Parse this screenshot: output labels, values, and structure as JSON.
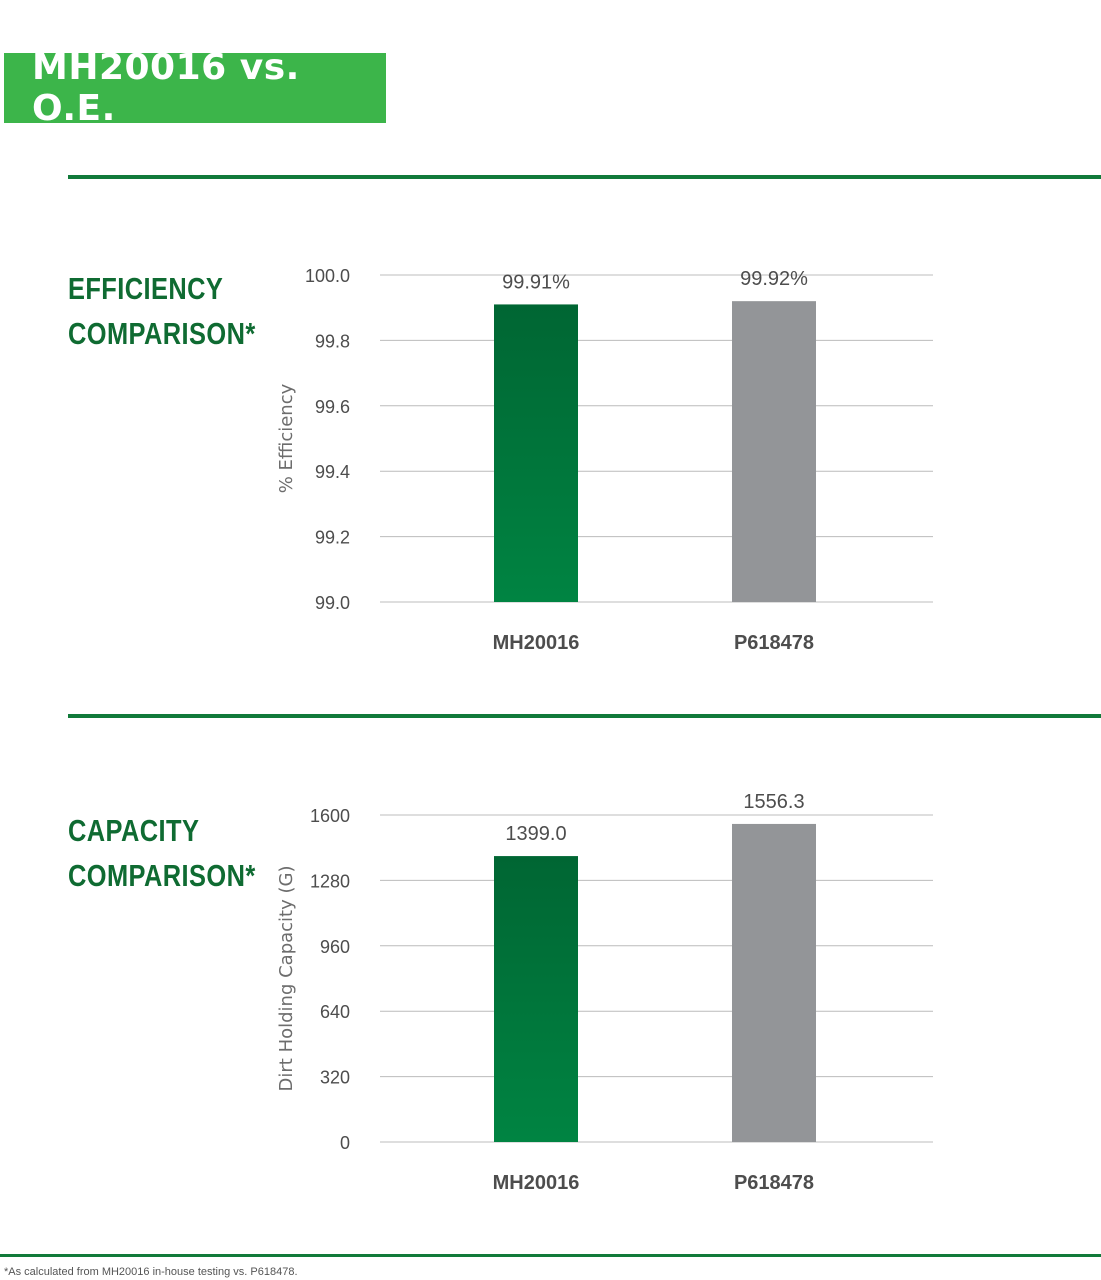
{
  "header": {
    "title": "MH20016 vs. O.E."
  },
  "sections": [
    {
      "title_line1": "EFFICIENCY",
      "title_line2": "COMPARISON*"
    },
    {
      "title_line1": "CAPACITY",
      "title_line2": "COMPARISON*"
    }
  ],
  "footnote": "*As calculated from MH20016 in-house testing vs. P618478.",
  "colors": {
    "brand_green": "#3cb54a",
    "dark_green": "#0f6b32",
    "bar_green_top": "#006633",
    "bar_green_bottom": "#008442",
    "bar_gray": "#939598",
    "grid": "#bcbcbc"
  },
  "chart_data": [
    {
      "type": "bar",
      "categories": [
        "MH20016",
        "P618478"
      ],
      "values": [
        99.91,
        99.92
      ],
      "value_labels": [
        "99.91%",
        "99.92%"
      ],
      "ylabel": "% Efficiency",
      "ylim": [
        99.0,
        100.0
      ],
      "yticks": [
        99.0,
        99.2,
        99.4,
        99.6,
        99.8,
        100.0
      ],
      "ytick_labels": [
        "99.0",
        "99.2",
        "99.4",
        "99.6",
        "99.8",
        "100.0"
      ],
      "grid": true
    },
    {
      "type": "bar",
      "categories": [
        "MH20016",
        "P618478"
      ],
      "values": [
        1399.0,
        1556.3
      ],
      "value_labels": [
        "1399.0",
        "1556.3"
      ],
      "ylabel": "Dirt Holding Capacity (G)",
      "ylim": [
        0,
        1600
      ],
      "yticks": [
        0,
        320,
        640,
        960,
        1280,
        1600
      ],
      "ytick_labels": [
        "0",
        "320",
        "640",
        "960",
        "1280",
        "1600"
      ],
      "grid": true
    }
  ]
}
